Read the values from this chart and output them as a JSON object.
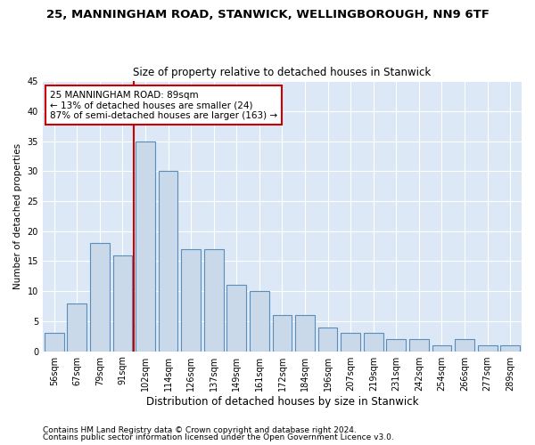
{
  "title": "25, MANNINGHAM ROAD, STANWICK, WELLINGBOROUGH, NN9 6TF",
  "subtitle": "Size of property relative to detached houses in Stanwick",
  "xlabel": "Distribution of detached houses by size in Stanwick",
  "ylabel": "Number of detached properties",
  "categories": [
    "56sqm",
    "67sqm",
    "79sqm",
    "91sqm",
    "102sqm",
    "114sqm",
    "126sqm",
    "137sqm",
    "149sqm",
    "161sqm",
    "172sqm",
    "184sqm",
    "196sqm",
    "207sqm",
    "219sqm",
    "231sqm",
    "242sqm",
    "254sqm",
    "266sqm",
    "277sqm",
    "289sqm"
  ],
  "values": [
    3,
    8,
    18,
    16,
    35,
    30,
    17,
    17,
    11,
    10,
    6,
    6,
    4,
    3,
    3,
    2,
    2,
    1,
    2,
    1,
    1
  ],
  "bar_color": "#c9d9ea",
  "bar_edge_color": "#5b8db8",
  "vline_color": "#cc0000",
  "vline_x_index": 3.5,
  "ylim": [
    0,
    45
  ],
  "yticks": [
    0,
    5,
    10,
    15,
    20,
    25,
    30,
    35,
    40,
    45
  ],
  "annotation_text": "25 MANNINGHAM ROAD: 89sqm\n← 13% of detached houses are smaller (24)\n87% of semi-detached houses are larger (163) →",
  "annotation_box_color": "#ffffff",
  "annotation_box_edge": "#cc0000",
  "footer1": "Contains HM Land Registry data © Crown copyright and database right 2024.",
  "footer2": "Contains public sector information licensed under the Open Government Licence v3.0.",
  "fig_bg_color": "#ffffff",
  "plot_bg_color": "#dce8f5",
  "grid_color": "#ffffff",
  "title_fontsize": 9.5,
  "subtitle_fontsize": 8.5,
  "xlabel_fontsize": 8.5,
  "ylabel_fontsize": 7.5,
  "tick_fontsize": 7,
  "annot_fontsize": 7.5,
  "footer_fontsize": 6.5
}
